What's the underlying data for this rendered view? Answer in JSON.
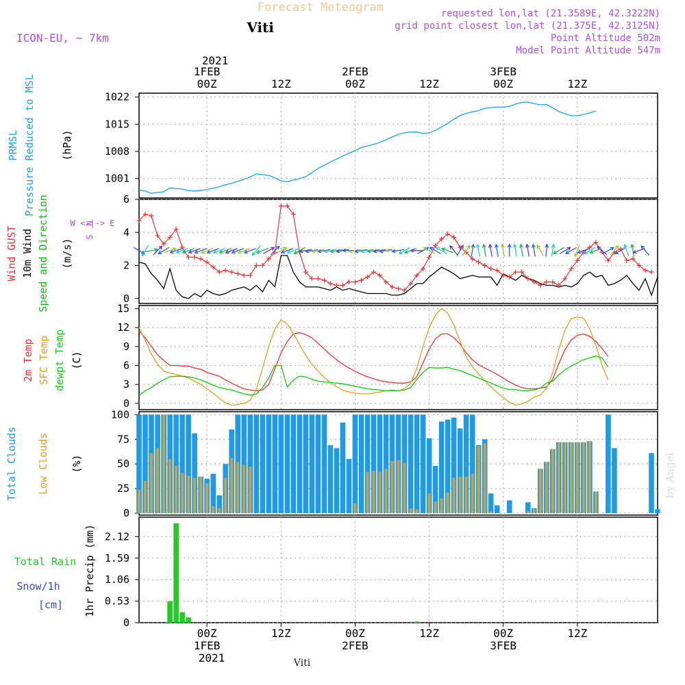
{
  "header": {
    "title": "Forecast Meteogram",
    "location": "Viti",
    "model": "ICON-EU, ~ 7km",
    "requested": "requested lon,lat (21.3589E, 42.3222N)",
    "gridpoint": "grid point closest lon,lat (21.375E, 42.3125N)",
    "point_alt": "Point Altitude 502m",
    "model_alt": "Model Point Altitude 547m"
  },
  "footer": {
    "location": "Viti",
    "credit": "by Angel"
  },
  "time_axis": {
    "top_year": "2021",
    "bottom_year": "2021",
    "ticks": [
      {
        "h": 0,
        "label": "00Z",
        "date": "1FEB"
      },
      {
        "h": 12,
        "label": "12Z",
        "date": ""
      },
      {
        "h": 24,
        "label": "00Z",
        "date": "2FEB"
      },
      {
        "h": 36,
        "label": "12Z",
        "date": ""
      },
      {
        "h": 48,
        "label": "00Z",
        "date": "3FEB"
      },
      {
        "h": 60,
        "label": "12Z",
        "date": ""
      }
    ]
  },
  "colors": {
    "pressure": "#1aa3e6",
    "gust": "#ee3333",
    "wind": "#000000",
    "arrows_label": "#11bb11",
    "temp": "#ee3333",
    "sfc": "#e0a020",
    "dewpt": "#11cc11",
    "total_cloud": "#1e9ae6",
    "low_cloud": "#c8a248",
    "rain": "#22cc22",
    "snow": "#3344ee",
    "purple": "#b04ee0",
    "title": "#f0c890"
  },
  "chart_data": [
    {
      "type": "line",
      "panel": "pressure",
      "label_lines": [
        "PRMSL",
        "Pressure Reduced to MSL"
      ],
      "unit": "(hPa)",
      "ylim": [
        996,
        1023
      ],
      "yticks": [
        1001,
        1008,
        1015,
        1022
      ],
      "x_start": -11,
      "x_step": 1,
      "values": [
        998.0,
        997.8,
        997.2,
        997.4,
        997.6,
        998.6,
        998.4,
        998.3,
        997.9,
        997.8,
        997.9,
        998.2,
        998.5,
        998.9,
        999.4,
        999.8,
        1000.3,
        1000.8,
        1001.4,
        1002.2,
        1002.0,
        1001.8,
        1001.2,
        1000.4,
        1000.2,
        1000.6,
        1001.0,
        1001.5,
        1002.5,
        1003.6,
        1004.4,
        1005.3,
        1006.0,
        1006.8,
        1007.5,
        1008.2,
        1009.0,
        1009.4,
        1009.8,
        1010.3,
        1011.0,
        1011.7,
        1012.4,
        1012.8,
        1013.0,
        1013.0,
        1012.6,
        1012.8,
        1013.4,
        1014.3,
        1015.2,
        1016.3,
        1017.2,
        1017.8,
        1018.2,
        1018.5,
        1019.1,
        1019.3,
        1019.4,
        1019.4,
        1019.6,
        1020.2,
        1020.6,
        1020.7,
        1020.3,
        1020.0,
        1020.1,
        1019.2,
        1018.3,
        1017.7,
        1017.2,
        1017.2,
        1017.5,
        1017.9,
        1018.4
      ]
    },
    {
      "type": "line",
      "panel": "wind",
      "label_lines": [
        "Wind GUST",
        "10m Wind",
        "Speed and Direction"
      ],
      "unit": "(m/s)",
      "ylim": [
        -0.3,
        6
      ],
      "yticks": [
        0,
        2,
        4,
        6
      ],
      "x_start": -11,
      "x_step": 1,
      "series": [
        {
          "name": "Wind GUST",
          "values": [
            4.7,
            5.1,
            5.0,
            3.8,
            3.3,
            3.7,
            4.2,
            3.1,
            2.5,
            2.5,
            2.4,
            2.2,
            1.9,
            1.6,
            1.7,
            1.6,
            1.5,
            1.4,
            1.4,
            2.0,
            2.0,
            2.4,
            2.8,
            5.6,
            5.6,
            5.1,
            2.8,
            1.6,
            1.2,
            1.2,
            1.1,
            0.9,
            0.8,
            0.8,
            1.0,
            1.0,
            1.1,
            1.3,
            1.6,
            1.4,
            1.0,
            0.7,
            0.6,
            0.5,
            0.9,
            1.4,
            1.8,
            2.5,
            3.2,
            3.6,
            3.9,
            3.7,
            3.1,
            2.8,
            2.4,
            2.2,
            2.0,
            1.8,
            1.7,
            1.4,
            1.3,
            1.6,
            1.6,
            1.2,
            1.0,
            0.8,
            1.0,
            1.0,
            0.8,
            1.2,
            1.8,
            2.3,
            2.8,
            3.1,
            3.4,
            2.8,
            2.3,
            2.8,
            3.0,
            2.3,
            2.4,
            2.0,
            1.7,
            1.6
          ]
        },
        {
          "name": "10m Wind",
          "values": [
            2.2,
            2.1,
            1.5,
            1.1,
            0.6,
            1.8,
            0.5,
            0.1,
            0.0,
            0.3,
            0.1,
            0.5,
            0.3,
            0.2,
            0.3,
            0.5,
            0.6,
            0.7,
            0.5,
            0.8,
            0.4,
            1.1,
            0.7,
            2.6,
            2.6,
            1.6,
            1.0,
            0.7,
            0.7,
            0.7,
            0.6,
            0.5,
            0.7,
            0.5,
            0.6,
            0.5,
            0.4,
            0.3,
            0.3,
            0.3,
            0.3,
            0.2,
            0.2,
            0.3,
            0.6,
            0.9,
            0.9,
            1.3,
            1.6,
            1.9,
            1.7,
            1.5,
            1.2,
            1.3,
            1.4,
            1.3,
            1.3,
            1.3,
            0.8,
            1.5,
            1.3,
            1.1,
            1.4,
            1.2,
            1.1,
            0.9,
            0.8,
            0.8,
            0.7,
            0.8,
            0.7,
            0.9,
            1.4,
            1.6,
            1.3,
            1.4,
            0.8,
            0.9,
            1.1,
            1.4,
            0.9,
            0.5,
            1.2,
            0.2,
            1.3
          ]
        },
        {
          "name": "Speed and Direction",
          "arrow_dirs": [
            120,
            210,
            80,
            45,
            240,
            70,
            250,
            250,
            250,
            250,
            250,
            250,
            250,
            250,
            250,
            250,
            250,
            250,
            250,
            220,
            250,
            60,
            45,
            60,
            250,
            250,
            240,
            260,
            260,
            260,
            260,
            260,
            260,
            260,
            270,
            260,
            260,
            260,
            260,
            260,
            260,
            270,
            260,
            240,
            250,
            270,
            60,
            300,
            300,
            300,
            290,
            320,
            30,
            35,
            10,
            350,
            350,
            350,
            350,
            350,
            0,
            350,
            350,
            350,
            350,
            330,
            5,
            10,
            240,
            60,
            240,
            200,
            250,
            240,
            250,
            310,
            60,
            40,
            240,
            340,
            350,
            250,
            320
          ]
        }
      ],
      "compass": [
        "N",
        "W <-|-> E",
        "S"
      ]
    },
    {
      "type": "line",
      "panel": "temperature",
      "label_lines": [
        "2m Temp",
        "SFC Temp",
        "dewpt Temp"
      ],
      "unit": "(C)",
      "ylim": [
        -1,
        15.5
      ],
      "yticks": [
        0,
        3,
        6,
        9,
        12,
        15
      ],
      "x_start": -11,
      "x_step": 1,
      "series": [
        {
          "name": "2m Temp",
          "values": [
            11.5,
            10.4,
            9.0,
            7.7,
            6.8,
            6.0,
            6.0,
            5.9,
            5.9,
            5.6,
            5.4,
            4.9,
            4.6,
            4.3,
            3.7,
            3.2,
            2.7,
            2.3,
            2.1,
            2.0,
            2.1,
            3.0,
            5.5,
            8.0,
            9.8,
            11.0,
            11.2,
            10.9,
            10.4,
            9.5,
            8.6,
            7.7,
            6.9,
            6.2,
            5.6,
            5.1,
            4.6,
            4.2,
            3.9,
            3.6,
            3.4,
            3.3,
            3.2,
            3.2,
            3.4,
            4.2,
            6.4,
            8.6,
            10.2,
            11.0,
            11.0,
            10.4,
            9.4,
            8.0,
            6.9,
            6.1,
            5.6,
            5.1,
            4.6,
            4.0,
            3.4,
            2.9,
            2.5,
            2.3,
            2.3,
            2.4,
            2.6,
            3.8,
            6.3,
            8.5,
            10.0,
            10.8,
            11.0,
            10.6,
            9.8,
            8.7,
            7.4
          ]
        },
        {
          "name": "SFC Temp",
          "values": [
            12.0,
            10.0,
            7.8,
            6.2,
            5.1,
            4.8,
            4.6,
            4.3,
            4.0,
            3.5,
            3.0,
            2.3,
            1.6,
            0.8,
            0.1,
            -0.3,
            -0.2,
            0.0,
            0.5,
            2.2,
            5.5,
            9.0,
            11.8,
            13.2,
            12.6,
            11.1,
            9.3,
            7.6,
            6.2,
            5.1,
            4.1,
            3.3,
            2.6,
            2.1,
            1.8,
            1.6,
            1.5,
            1.5,
            1.6,
            1.8,
            2.0,
            2.1,
            2.0,
            2.3,
            3.2,
            5.5,
            9.0,
            12.0,
            14.0,
            15.0,
            14.3,
            12.4,
            9.8,
            7.3,
            5.8,
            4.7,
            3.6,
            2.6,
            1.7,
            0.9,
            0.2,
            -0.3,
            -0.1,
            0.3,
            1.0,
            1.3,
            2.4,
            4.8,
            8.6,
            11.6,
            13.4,
            13.7,
            13.5,
            11.8,
            9.2,
            6.0,
            3.7
          ]
        },
        {
          "name": "dewpt Temp",
          "values": [
            1.2,
            2.0,
            2.5,
            3.2,
            3.7,
            4.2,
            4.3,
            4.3,
            4.2,
            4.0,
            3.7,
            3.3,
            2.9,
            2.5,
            2.3,
            2.1,
            1.8,
            1.5,
            1.3,
            1.5,
            2.5,
            4.0,
            6.0,
            6.0,
            2.6,
            3.7,
            4.3,
            4.2,
            3.8,
            3.5,
            3.4,
            3.3,
            3.2,
            3.1,
            2.9,
            2.7,
            2.5,
            2.3,
            2.2,
            2.1,
            2.0,
            2.0,
            2.0,
            2.1,
            2.5,
            3.8,
            4.9,
            5.7,
            5.6,
            5.6,
            5.7,
            5.4,
            5.2,
            4.8,
            4.4,
            4.0,
            3.6,
            3.2,
            2.8,
            2.4,
            2.2,
            2.2,
            2.0,
            2.0,
            2.1,
            2.4,
            3.2,
            3.5,
            4.5,
            5.3,
            5.9,
            6.4,
            6.9,
            7.2,
            7.5,
            7.2,
            5.8
          ]
        }
      ]
    },
    {
      "type": "bar",
      "panel": "clouds",
      "label_lines": [
        "Total Clouds",
        "Low Clouds"
      ],
      "unit": "(%)",
      "ylim": [
        -2,
        103
      ],
      "yticks": [
        0,
        25,
        50,
        75,
        100
      ],
      "x_start": -11,
      "x_step": 1,
      "series": [
        {
          "name": "Total Clouds",
          "values": [
            100,
            100,
            100,
            100,
            100,
            100,
            100,
            100,
            100,
            81,
            37,
            35,
            40,
            18,
            50,
            85,
            100,
            100,
            100,
            100,
            100,
            100,
            100,
            100,
            100,
            100,
            100,
            100,
            100,
            100,
            100,
            69,
            66,
            92,
            55,
            100,
            100,
            100,
            100,
            100,
            100,
            100,
            100,
            100,
            100,
            100,
            100,
            76,
            48,
            93,
            95,
            97,
            86,
            100,
            100,
            69,
            75,
            20,
            8,
            0,
            13,
            0,
            0,
            11,
            5,
            45,
            52,
            65,
            72,
            72,
            72,
            72,
            72,
            73,
            22,
            0,
            100,
            66,
            0,
            0,
            0,
            0,
            0,
            61,
            4
          ]
        },
        {
          "name": "Low Clouds",
          "values": [
            24,
            33,
            61,
            66,
            100,
            55,
            48,
            41,
            38,
            36,
            37,
            30,
            7,
            5,
            36,
            56,
            52,
            49,
            47,
            0,
            0,
            0,
            0,
            0,
            0,
            0,
            0,
            0,
            0,
            0,
            0,
            0,
            0,
            0,
            0,
            10,
            0,
            42,
            43,
            42,
            45,
            53,
            54,
            51,
            5,
            4,
            0,
            20,
            12,
            15,
            21,
            36,
            37,
            37,
            40,
            68,
            71,
            2,
            0,
            0,
            0,
            0,
            0,
            2,
            4,
            45,
            52,
            65,
            72,
            72,
            72,
            72,
            72,
            73,
            22,
            0,
            0,
            0,
            0,
            0,
            0,
            0,
            0,
            0,
            0
          ]
        }
      ]
    },
    {
      "type": "bar",
      "panel": "precipitation",
      "label_lines": [
        "Total Rain",
        "Snow/1h",
        "[cm]"
      ],
      "unit": "1hr Precip (mm)",
      "ylim": [
        0,
        2.6
      ],
      "yticks": [
        0,
        0.53,
        1.06,
        1.59,
        2.12
      ],
      "x_start": -11,
      "x_step": 1,
      "series": [
        {
          "name": "Total Rain",
          "values": [
            0,
            0,
            0,
            0,
            0,
            0.53,
            2.45,
            0.26,
            0.13,
            0,
            0,
            0,
            0,
            0,
            0,
            0,
            0,
            0,
            0,
            0,
            0,
            0,
            0,
            0,
            0,
            0,
            0,
            0,
            0,
            0,
            0,
            0,
            0,
            0,
            0,
            0,
            0,
            0,
            0,
            0,
            0,
            0,
            0,
            0,
            0,
            0.01,
            0,
            0,
            0,
            0,
            0,
            0,
            0,
            0,
            0,
            0,
            0,
            0,
            0,
            0,
            0,
            0,
            0,
            0,
            0,
            0,
            0,
            0,
            0,
            0,
            0,
            0,
            0,
            0,
            0,
            0,
            0,
            0,
            0,
            0,
            0,
            0,
            0,
            0,
            0
          ]
        }
      ]
    }
  ]
}
